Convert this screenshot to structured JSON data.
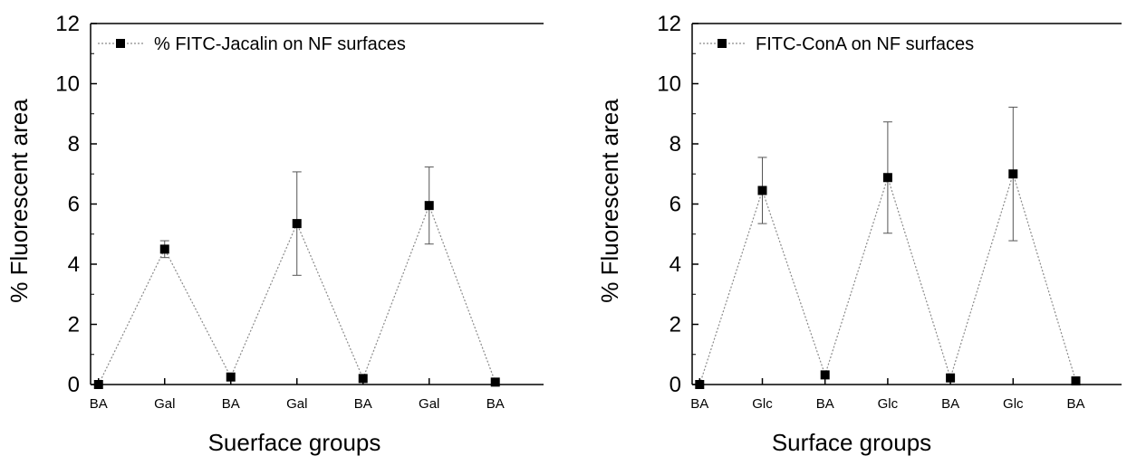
{
  "chart_data": [
    {
      "type": "line",
      "xlabel": "Suerface groups",
      "ylabel": "% Fluorescent area",
      "ylim": [
        0,
        12
      ],
      "yticks": [
        "0",
        "2",
        "4",
        "6",
        "8",
        "10",
        "12"
      ],
      "categories": [
        "BA",
        "Gal",
        "BA",
        "Gal",
        "BA",
        "Gal",
        "BA"
      ],
      "grid": false,
      "legend_position": "top-left",
      "series": [
        {
          "name": "% FITC-Jacalin on NF surfaces",
          "values": [
            0.0,
            4.5,
            0.25,
            5.35,
            0.2,
            5.95,
            0.08
          ],
          "error": [
            0,
            0.28,
            0,
            1.72,
            0,
            1.28,
            0
          ]
        }
      ]
    },
    {
      "type": "line",
      "xlabel": "Surface groups",
      "ylabel": "% Fluorescent area",
      "ylim": [
        0,
        12
      ],
      "yticks": [
        "0",
        "2",
        "4",
        "6",
        "8",
        "10",
        "12"
      ],
      "categories": [
        "BA",
        "Glc",
        "BA",
        "Glc",
        "BA",
        "Glc",
        "BA"
      ],
      "grid": false,
      "legend_position": "top-left",
      "series": [
        {
          "name": "FITC-ConA on NF surfaces",
          "values": [
            0.0,
            6.45,
            0.32,
            6.88,
            0.22,
            7.0,
            0.12
          ],
          "error": [
            0,
            1.1,
            0,
            1.85,
            0,
            2.22,
            0
          ]
        }
      ]
    }
  ]
}
